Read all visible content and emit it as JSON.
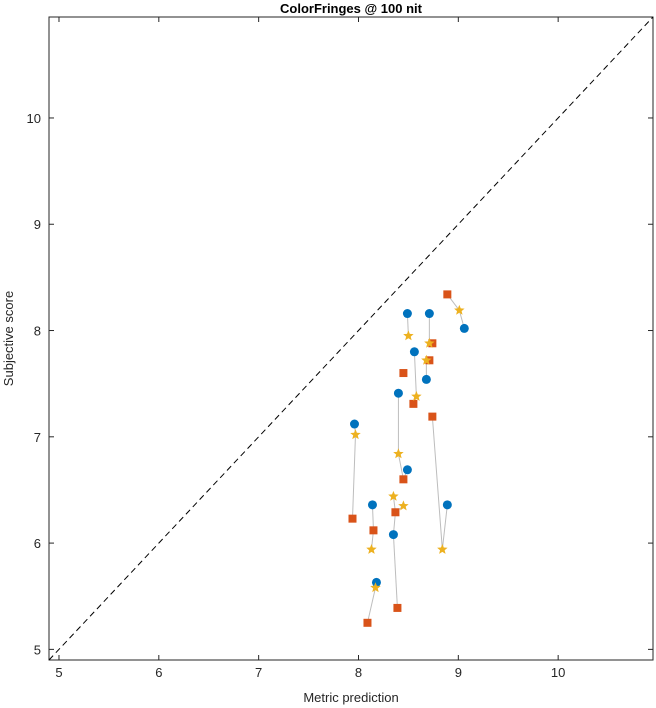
{
  "chart_data": {
    "type": "scatter",
    "title": "ColorFringes @ 100 nit",
    "xlabel": "Metric prediction",
    "ylabel": "Subjective score",
    "xlim": [
      4.9,
      10.95
    ],
    "ylim": [
      4.9,
      10.95
    ],
    "xticks": [
      5,
      6,
      7,
      8,
      9,
      10
    ],
    "yticks": [
      5,
      6,
      7,
      8,
      9,
      10
    ],
    "grid": false,
    "reference_line": "identity",
    "series": [
      {
        "marker": "circle",
        "color": "#0072BD",
        "points": [
          [
            8.49,
            8.16
          ],
          [
            8.71,
            8.16
          ],
          [
            9.06,
            8.02
          ],
          [
            8.56,
            7.8
          ],
          [
            8.68,
            7.54
          ],
          [
            8.4,
            7.41
          ],
          [
            7.96,
            7.12
          ],
          [
            8.49,
            6.69
          ],
          [
            8.14,
            6.36
          ],
          [
            8.89,
            6.36
          ],
          [
            8.35,
            6.08
          ],
          [
            8.18,
            5.63
          ]
        ]
      },
      {
        "marker": "square",
        "color": "#D95319",
        "points": [
          [
            8.89,
            8.34
          ],
          [
            8.74,
            7.88
          ],
          [
            8.71,
            7.72
          ],
          [
            8.45,
            7.6
          ],
          [
            8.55,
            7.31
          ],
          [
            8.74,
            7.19
          ],
          [
            8.45,
            6.6
          ],
          [
            8.37,
            6.29
          ],
          [
            7.94,
            6.23
          ],
          [
            8.15,
            6.12
          ],
          [
            8.39,
            5.39
          ],
          [
            8.09,
            5.25
          ]
        ]
      },
      {
        "marker": "star",
        "color": "#EDB120",
        "points": [
          [
            9.01,
            8.19
          ],
          [
            8.5,
            7.95
          ],
          [
            8.71,
            7.88
          ],
          [
            8.68,
            7.72
          ],
          [
            8.58,
            7.38
          ],
          [
            7.97,
            7.02
          ],
          [
            8.4,
            6.84
          ],
          [
            8.35,
            6.44
          ],
          [
            8.45,
            6.35
          ],
          [
            8.13,
            5.94
          ],
          [
            8.84,
            5.94
          ],
          [
            8.17,
            5.58
          ]
        ]
      }
    ],
    "connector_color": "#bdbdbd",
    "connectors": [
      [
        [
          9.06,
          8.02
        ],
        [
          9.01,
          8.19
        ],
        [
          8.89,
          8.34
        ]
      ],
      [
        [
          8.49,
          8.16
        ],
        [
          8.5,
          7.95
        ]
      ],
      [
        [
          8.71,
          8.16
        ],
        [
          8.71,
          7.88
        ],
        [
          8.74,
          7.88
        ]
      ],
      [
        [
          8.56,
          7.8
        ],
        [
          8.58,
          7.38
        ],
        [
          8.55,
          7.31
        ]
      ],
      [
        [
          8.68,
          7.54
        ],
        [
          8.68,
          7.72
        ],
        [
          8.71,
          7.72
        ]
      ],
      [
        [
          8.4,
          7.41
        ],
        [
          8.4,
          6.84
        ],
        [
          8.45,
          6.6
        ],
        [
          8.49,
          6.69
        ]
      ],
      [
        [
          7.96,
          7.12
        ],
        [
          7.97,
          7.02
        ],
        [
          7.94,
          6.23
        ]
      ],
      [
        [
          8.14,
          6.36
        ],
        [
          8.15,
          6.12
        ],
        [
          8.13,
          5.94
        ]
      ],
      [
        [
          8.18,
          5.63
        ],
        [
          8.17,
          5.58
        ],
        [
          8.09,
          5.25
        ]
      ],
      [
        [
          8.35,
          6.08
        ],
        [
          8.37,
          6.29
        ],
        [
          8.35,
          6.44
        ]
      ],
      [
        [
          8.35,
          6.08
        ],
        [
          8.39,
          5.39
        ]
      ],
      [
        [
          8.74,
          7.19
        ],
        [
          8.84,
          5.94
        ],
        [
          8.89,
          6.36
        ]
      ],
      [
        [
          8.45,
          6.35
        ],
        [
          8.37,
          6.29
        ]
      ]
    ]
  }
}
